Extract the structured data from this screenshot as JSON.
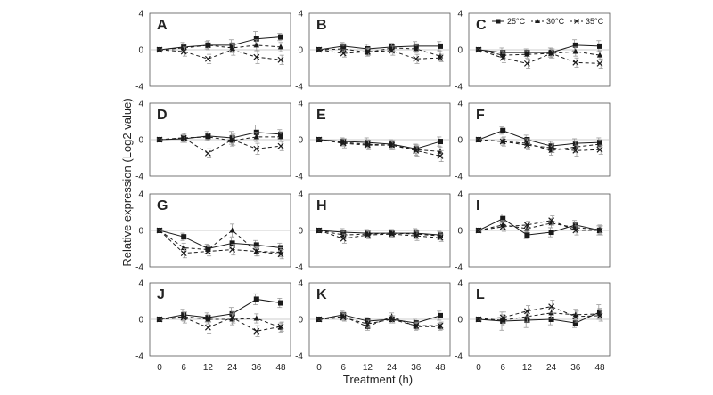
{
  "figure": {
    "ylabel": "Relative expression (Log2 value)",
    "xlabel": "Treatment (h)"
  },
  "legend": {
    "placement": "inside-panel-C-top",
    "entries": [
      {
        "label": "25°C",
        "marker": "square",
        "dash": "solid"
      },
      {
        "label": "30°C",
        "marker": "triangle",
        "dash": "dashed"
      },
      {
        "label": "35°C",
        "marker": "cross",
        "dash": "dashed"
      }
    ]
  },
  "colors": {
    "line": "#1a1a1a",
    "error": "#9a9a9a",
    "frame": "#555555",
    "zero": "#bdbdbd"
  },
  "chart_data": {
    "type": "line",
    "x": [
      0,
      6,
      12,
      24,
      36,
      48
    ],
    "x_ticks": [
      "0",
      "6",
      "12",
      "24",
      "36",
      "48"
    ],
    "ylim": [
      -4,
      4
    ],
    "y_ticks": [
      "4",
      "0",
      "-4"
    ],
    "grid": false,
    "panels": [
      {
        "label": "A",
        "series": [
          {
            "values": [
              0,
              0.3,
              0.5,
              0.5,
              1.2,
              1.4
            ],
            "err": [
              0.1,
              0.5,
              0.4,
              0.6,
              0.8,
              0.4
            ]
          },
          {
            "values": [
              0,
              0.2,
              0.5,
              0.2,
              0.5,
              0.3
            ],
            "err": [
              0.1,
              0.4,
              0.5,
              0.5,
              0.6,
              0.5
            ]
          },
          {
            "values": [
              0,
              -0.2,
              -1.0,
              0.0,
              -0.8,
              -1.1
            ],
            "err": [
              0.1,
              0.5,
              0.5,
              0.6,
              0.7,
              0.5
            ]
          }
        ]
      },
      {
        "label": "B",
        "series": [
          {
            "values": [
              0,
              0.4,
              0.1,
              0.3,
              0.4,
              0.4
            ],
            "err": [
              0.1,
              0.4,
              0.5,
              0.4,
              0.5,
              0.5
            ]
          },
          {
            "values": [
              0,
              0.1,
              -0.3,
              0.2,
              0.1,
              -0.7
            ],
            "err": [
              0.1,
              0.4,
              0.4,
              0.5,
              0.4,
              0.5
            ]
          },
          {
            "values": [
              0,
              -0.4,
              -0.2,
              -0.1,
              -1.0,
              -0.9
            ],
            "err": [
              0.1,
              0.4,
              0.4,
              0.5,
              0.5,
              0.4
            ]
          }
        ]
      },
      {
        "label": "C",
        "series": [
          {
            "values": [
              0,
              -0.3,
              -0.3,
              -0.3,
              0.5,
              0.4
            ],
            "err": [
              0.1,
              0.5,
              0.4,
              0.5,
              0.6,
              0.6
            ]
          },
          {
            "values": [
              0,
              -0.6,
              -0.5,
              -0.4,
              -0.2,
              -0.6
            ],
            "err": [
              0.1,
              0.5,
              0.4,
              0.5,
              0.5,
              0.5
            ]
          },
          {
            "values": [
              0,
              -0.9,
              -1.5,
              -0.4,
              -1.4,
              -1.5
            ],
            "err": [
              0.1,
              0.5,
              0.5,
              0.5,
              0.5,
              0.5
            ]
          }
        ]
      },
      {
        "label": "D",
        "series": [
          {
            "values": [
              0,
              0.1,
              0.4,
              0.2,
              0.8,
              0.6
            ],
            "err": [
              0.1,
              0.4,
              0.5,
              0.7,
              0.8,
              0.5
            ]
          },
          {
            "values": [
              0,
              0.2,
              0.3,
              -0.1,
              0.3,
              0.3
            ],
            "err": [
              0.1,
              0.4,
              0.4,
              0.6,
              0.5,
              0.5
            ]
          },
          {
            "values": [
              0,
              0.2,
              -1.5,
              0.0,
              -1.0,
              -0.7
            ],
            "err": [
              0.1,
              0.5,
              0.5,
              0.6,
              0.6,
              0.5
            ]
          }
        ]
      },
      {
        "label": "E",
        "series": [
          {
            "values": [
              0,
              -0.2,
              -0.3,
              -0.5,
              -1.0,
              -0.2
            ],
            "err": [
              0.1,
              0.4,
              0.5,
              0.5,
              0.5,
              0.5
            ]
          },
          {
            "values": [
              0,
              -0.3,
              -0.5,
              -0.6,
              -1.1,
              -1.3
            ],
            "err": [
              0.1,
              0.4,
              0.5,
              0.5,
              0.6,
              0.5
            ]
          },
          {
            "values": [
              0,
              -0.4,
              -0.6,
              -0.6,
              -1.2,
              -1.8
            ],
            "err": [
              0.1,
              0.5,
              0.5,
              0.5,
              0.6,
              0.6
            ]
          }
        ]
      },
      {
        "label": "F",
        "series": [
          {
            "values": [
              0,
              1.0,
              0.0,
              -0.7,
              -0.4,
              -0.3
            ],
            "err": [
              0.1,
              0.4,
              0.5,
              0.5,
              0.5,
              0.5
            ]
          },
          {
            "values": [
              0,
              -0.2,
              -0.4,
              -1.2,
              -0.8,
              -0.5
            ],
            "err": [
              0.1,
              0.4,
              0.5,
              0.5,
              0.6,
              0.5
            ]
          },
          {
            "values": [
              0,
              -0.2,
              -0.6,
              -0.9,
              -1.2,
              -1.1
            ],
            "err": [
              0.1,
              0.5,
              0.5,
              0.5,
              0.6,
              0.5
            ]
          }
        ]
      },
      {
        "label": "G",
        "series": [
          {
            "values": [
              0,
              -0.7,
              -2.0,
              -1.4,
              -1.6,
              -1.9
            ],
            "err": [
              0.1,
              0.4,
              0.5,
              0.6,
              0.5,
              0.5
            ]
          },
          {
            "values": [
              0,
              -1.9,
              -2.1,
              0.0,
              -2.3,
              -2.4
            ],
            "err": [
              0.1,
              0.5,
              0.5,
              0.7,
              0.5,
              0.5
            ]
          },
          {
            "values": [
              0,
              -2.5,
              -2.3,
              -2.1,
              -2.3,
              -2.6
            ],
            "err": [
              0.1,
              0.5,
              0.5,
              0.6,
              0.5,
              0.5
            ]
          }
        ]
      },
      {
        "label": "H",
        "series": [
          {
            "values": [
              0,
              -0.2,
              -0.3,
              -0.3,
              -0.3,
              -0.5
            ],
            "err": [
              0.1,
              0.4,
              0.4,
              0.4,
              0.5,
              0.4
            ]
          },
          {
            "values": [
              0,
              -0.5,
              -0.4,
              -0.3,
              -0.4,
              -0.6
            ],
            "err": [
              0.1,
              0.4,
              0.4,
              0.4,
              0.5,
              0.4
            ]
          },
          {
            "values": [
              0,
              -0.9,
              -0.5,
              -0.4,
              -0.6,
              -0.8
            ],
            "err": [
              0.1,
              0.5,
              0.4,
              0.4,
              0.5,
              0.4
            ]
          }
        ]
      },
      {
        "label": "I",
        "series": [
          {
            "values": [
              0,
              1.3,
              -0.5,
              -0.2,
              0.6,
              0.0
            ],
            "err": [
              0.1,
              0.5,
              0.4,
              0.5,
              0.5,
              0.5
            ]
          },
          {
            "values": [
              0,
              0.6,
              0.2,
              0.8,
              0.3,
              0.1
            ],
            "err": [
              0.1,
              0.5,
              0.4,
              0.5,
              0.5,
              0.5
            ]
          },
          {
            "values": [
              0,
              0.4,
              0.6,
              1.1,
              0.0,
              0.0
            ],
            "err": [
              0.1,
              0.5,
              0.4,
              0.5,
              0.5,
              0.5
            ]
          }
        ]
      },
      {
        "label": "J",
        "series": [
          {
            "values": [
              0,
              0.5,
              0.2,
              0.6,
              2.2,
              1.8
            ],
            "err": [
              0.1,
              0.6,
              0.5,
              0.7,
              0.6,
              0.5
            ]
          },
          {
            "values": [
              0,
              0.3,
              0.0,
              0.0,
              0.1,
              -0.9
            ],
            "err": [
              0.1,
              0.5,
              0.5,
              0.6,
              0.5,
              0.5
            ]
          },
          {
            "values": [
              0,
              0.2,
              -0.9,
              0.2,
              -1.3,
              -0.8
            ],
            "err": [
              0.1,
              0.6,
              0.6,
              0.6,
              0.6,
              0.5
            ]
          }
        ]
      },
      {
        "label": "K",
        "series": [
          {
            "values": [
              0,
              0.5,
              -0.2,
              0.0,
              -0.4,
              0.4
            ],
            "err": [
              0.1,
              0.4,
              0.4,
              0.4,
              0.4,
              0.5
            ]
          },
          {
            "values": [
              0,
              0.3,
              -0.8,
              0.3,
              -0.8,
              -0.8
            ],
            "err": [
              0.1,
              0.4,
              0.4,
              0.4,
              0.4,
              0.4
            ]
          },
          {
            "values": [
              0,
              0.2,
              -0.5,
              0.0,
              -0.7,
              -0.7
            ],
            "err": [
              0.1,
              0.4,
              0.4,
              0.4,
              0.4,
              0.4
            ]
          }
        ]
      },
      {
        "label": "L",
        "series": [
          {
            "values": [
              0,
              -0.2,
              -0.1,
              0.0,
              -0.4,
              0.8
            ],
            "err": [
              0.1,
              1.0,
              0.8,
              0.6,
              0.5,
              0.8
            ]
          },
          {
            "values": [
              0,
              -0.1,
              0.3,
              0.7,
              0.5,
              0.6
            ],
            "err": [
              0.1,
              0.6,
              0.6,
              0.6,
              0.6,
              0.6
            ]
          },
          {
            "values": [
              0,
              0.2,
              0.9,
              1.4,
              0.3,
              0.4
            ],
            "err": [
              0.1,
              0.6,
              0.6,
              0.7,
              0.6,
              0.6
            ]
          }
        ]
      }
    ]
  }
}
